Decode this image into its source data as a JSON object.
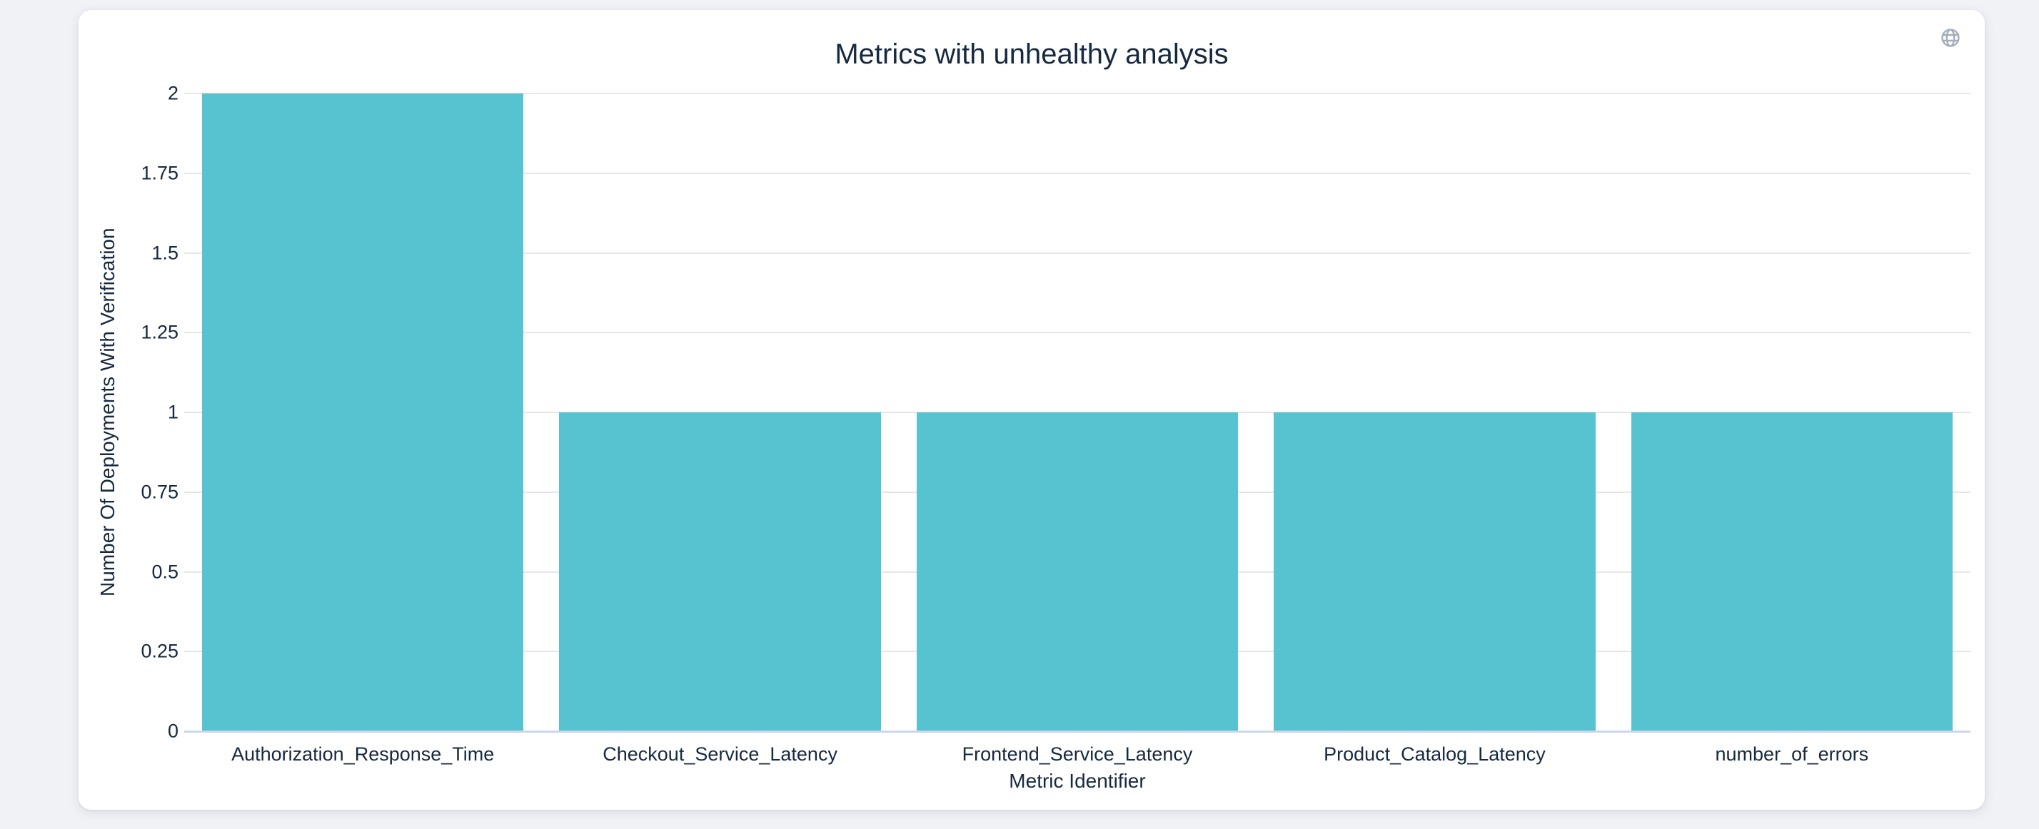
{
  "page": {
    "background": "#f0f2f6"
  },
  "card": {
    "background": "#ffffff"
  },
  "toolbar": {
    "globe_icon": "globe"
  },
  "chart_data": {
    "type": "bar",
    "title": "Metrics with unhealthy analysis",
    "xlabel": "Metric Identifier",
    "ylabel": "Number Of Deployments With Verification",
    "categories": [
      "Authorization_Response_Time",
      "Checkout_Service_Latency",
      "Frontend_Service_Latency",
      "Product_Catalog_Latency",
      "number_of_errors"
    ],
    "values": [
      2,
      1,
      1,
      1,
      1
    ],
    "ylim": [
      0,
      2
    ],
    "yticks": [
      {
        "label": "0",
        "value": 0
      },
      {
        "label": "0.25",
        "value": 0.25
      },
      {
        "label": "0.5",
        "value": 0.5
      },
      {
        "label": "0.75",
        "value": 0.75
      },
      {
        "label": "1",
        "value": 1
      },
      {
        "label": "1.25",
        "value": 1.25
      },
      {
        "label": "1.5",
        "value": 1.5
      },
      {
        "label": "1.75",
        "value": 1.75
      },
      {
        "label": "2",
        "value": 2
      }
    ],
    "grid": true,
    "legend": false,
    "bar_gap_fraction": 0.1,
    "colors": {
      "bar": "#58c3d0",
      "grid": "#e6e6e6",
      "axis_line": "#cdd7ea",
      "text": "#16293f",
      "icon": "#a6adba"
    }
  }
}
